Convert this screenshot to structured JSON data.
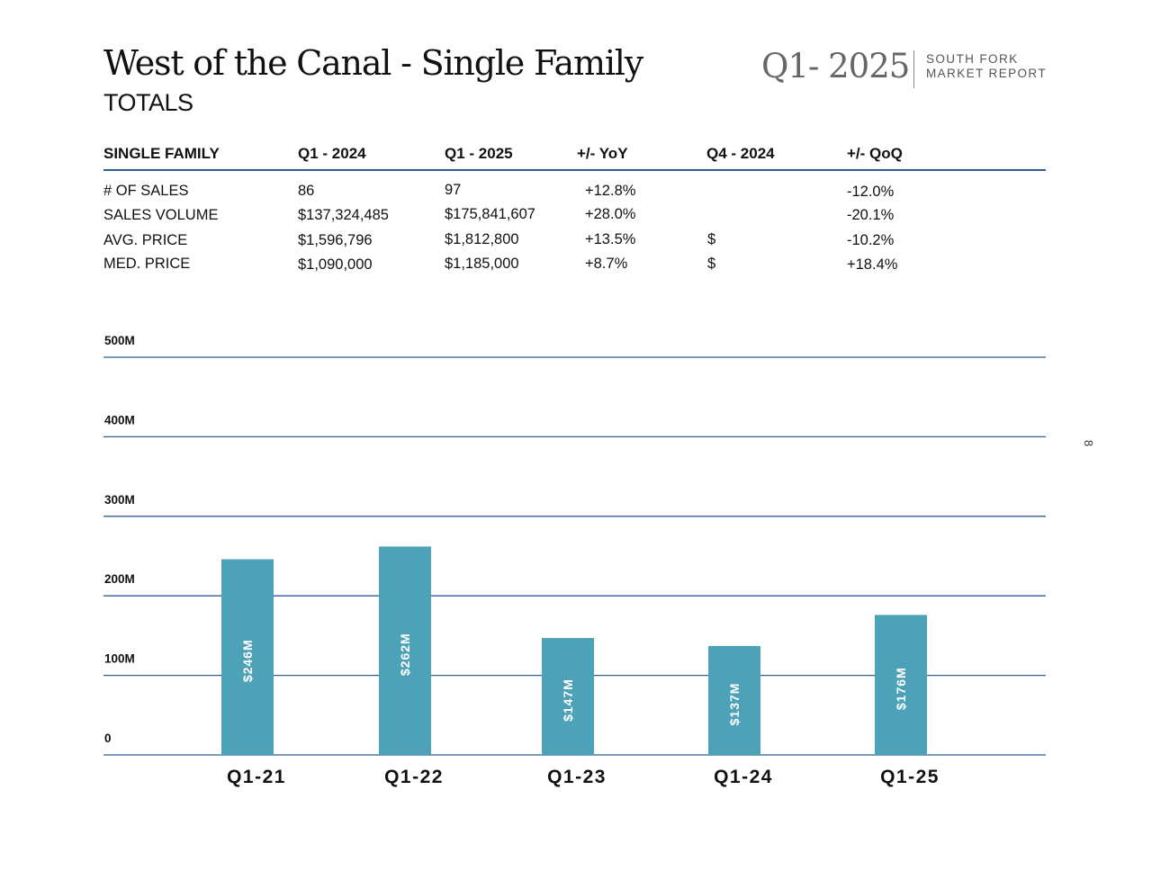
{
  "header": {
    "title": "West of the Canal - Single Family",
    "subtitle": "TOTALS",
    "quarter": "Q1- 2025",
    "brand_line1": "SOUTH FORK",
    "brand_line2": "MARKET REPORT"
  },
  "table": {
    "columns": [
      "SINGLE FAMILY",
      "Q1 - 2024",
      "Q1 - 2025",
      "+/- YoY",
      "Q4 - 2024",
      "+/- QoQ"
    ],
    "rows": [
      [
        "# OF SALES",
        "86",
        "97",
        "+12.8%",
        "",
        "-12.0%"
      ],
      [
        "SALES VOLUME",
        "$137,324,485",
        "$175,841,607",
        "+28.0%",
        "",
        "-20.1%"
      ],
      [
        "AVG. PRICE",
        "$1,596,796",
        "$1,812,800",
        "+13.5%",
        "$",
        "-10.2%"
      ],
      [
        "MED. PRICE",
        "$1,090,000",
        "$1,185,000",
        "+8.7%",
        "$",
        "+18.4%"
      ]
    ]
  },
  "page_number": "8",
  "chart_data": {
    "type": "bar",
    "title": "",
    "xlabel": "",
    "ylabel": "",
    "categories": [
      "Q1-21",
      "Q1-22",
      "Q1-23",
      "Q1-24",
      "Q1-25"
    ],
    "values": [
      246,
      262,
      147,
      137,
      176
    ],
    "data_labels": [
      "$246M",
      "$262M",
      "$147M",
      "$137M",
      "$176M"
    ],
    "units": "millions USD",
    "ylim": [
      0,
      500
    ],
    "yticks": [
      0,
      100,
      200,
      300,
      400,
      500
    ],
    "ytick_labels": [
      "0",
      "100M",
      "200M",
      "300M",
      "400M",
      "500M"
    ],
    "grid": true,
    "colors": {
      "bar": "#4ea2b8",
      "grid": "#2f5f93",
      "bar_label": "#ffffff",
      "axis_text": "#111111"
    }
  }
}
